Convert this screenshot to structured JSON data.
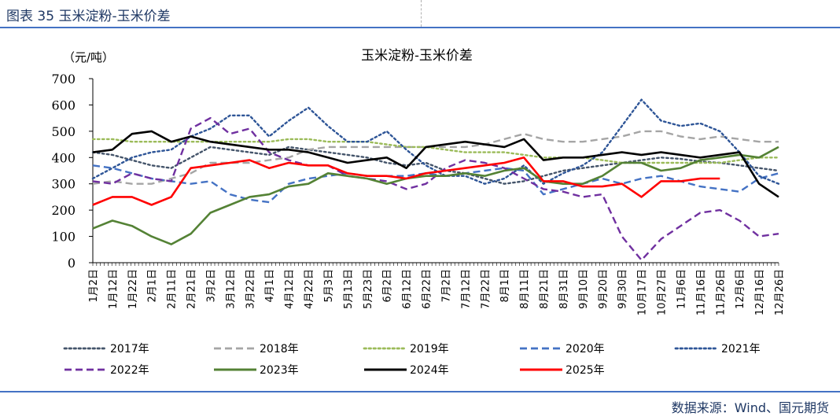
{
  "header": {
    "figure_title": "图表 35  玉米淀粉-玉米价差"
  },
  "footer": {
    "source": "数据来源：Wind、国元期货"
  },
  "chart_data": {
    "type": "line",
    "title": "玉米淀粉-玉米价差",
    "ylabel": "（元/吨）",
    "ylim": [
      0,
      700
    ],
    "yticks": [
      0,
      100,
      200,
      300,
      400,
      500,
      600,
      700
    ],
    "categories": [
      "1月2日",
      "1月12日",
      "1月22日",
      "2月1日",
      "2月11日",
      "2月21日",
      "3月2日",
      "3月12日",
      "3月22日",
      "4月1日",
      "4月12日",
      "4月22日",
      "5月3日",
      "5月13日",
      "5月23日",
      "6月2日",
      "6月12日",
      "6月22日",
      "7月2日",
      "7月12日",
      "7月22日",
      "8月1日",
      "8月11日",
      "8月21日",
      "8月31日",
      "9月10日",
      "9月20日",
      "9月30日",
      "10月17日",
      "10月27日",
      "11月6日",
      "11月16日",
      "11月26日",
      "12月6日",
      "12月16日",
      "12月26日"
    ],
    "legend_position": "bottom",
    "series": [
      {
        "name": "2017年",
        "color": "#44546a",
        "dash": "dot",
        "values": [
          420,
          410,
          390,
          370,
          360,
          400,
          440,
          430,
          420,
          410,
          440,
          430,
          420,
          410,
          400,
          380,
          370,
          380,
          350,
          340,
          320,
          300,
          310,
          330,
          350,
          360,
          370,
          380,
          390,
          400,
          395,
          385,
          380,
          370,
          360,
          350
        ]
      },
      {
        "name": "2018年",
        "color": "#a5a5a5",
        "dash": "dash",
        "values": [
          300,
          310,
          300,
          300,
          320,
          340,
          380,
          380,
          380,
          390,
          400,
          430,
          440,
          440,
          440,
          440,
          440,
          440,
          440,
          440,
          450,
          470,
          490,
          470,
          460,
          460,
          470,
          480,
          500,
          500,
          480,
          470,
          480,
          470,
          460,
          460
        ]
      },
      {
        "name": "2019年",
        "color": "#9bbb59",
        "dash": "dot",
        "values": [
          470,
          470,
          460,
          460,
          460,
          460,
          460,
          460,
          460,
          460,
          470,
          470,
          460,
          460,
          460,
          450,
          440,
          440,
          430,
          420,
          420,
          420,
          410,
          400,
          400,
          400,
          390,
          380,
          380,
          380,
          380,
          380,
          380,
          390,
          400,
          400
        ]
      },
      {
        "name": "2020年",
        "color": "#4472c4",
        "dash": "dash",
        "values": [
          370,
          360,
          340,
          320,
          310,
          300,
          310,
          260,
          240,
          230,
          300,
          320,
          330,
          340,
          330,
          330,
          330,
          340,
          330,
          340,
          350,
          360,
          350,
          260,
          280,
          300,
          320,
          300,
          320,
          330,
          310,
          290,
          280,
          270,
          320,
          340
        ]
      },
      {
        "name": "2021年",
        "color": "#2e5597",
        "dash": "dot",
        "values": [
          320,
          360,
          400,
          420,
          430,
          480,
          510,
          560,
          560,
          480,
          540,
          590,
          520,
          460,
          460,
          500,
          430,
          370,
          330,
          330,
          300,
          320,
          370,
          300,
          340,
          370,
          420,
          520,
          620,
          540,
          520,
          530,
          500,
          420,
          330,
          300
        ]
      },
      {
        "name": "2022年",
        "color": "#7030a0",
        "dash": "dash",
        "values": [
          310,
          300,
          340,
          320,
          310,
          510,
          550,
          490,
          510,
          420,
          390,
          370,
          370,
          330,
          320,
          310,
          280,
          300,
          360,
          390,
          380,
          360,
          320,
          280,
          270,
          250,
          260,
          100,
          10,
          90,
          140,
          190,
          200,
          160,
          100,
          110
        ]
      },
      {
        "name": "2023年",
        "color": "#548235",
        "dash": "solid",
        "values": [
          130,
          160,
          140,
          100,
          70,
          110,
          190,
          220,
          250,
          260,
          290,
          300,
          340,
          330,
          320,
          300,
          320,
          330,
          330,
          340,
          330,
          350,
          360,
          310,
          300,
          300,
          330,
          380,
          380,
          350,
          360,
          390,
          400,
          410,
          400,
          440
        ]
      },
      {
        "name": "2024年",
        "color": "#000000",
        "dash": "solid",
        "values": [
          420,
          430,
          490,
          500,
          460,
          480,
          460,
          450,
          440,
          430,
          430,
          420,
          400,
          380,
          390,
          400,
          360,
          440,
          450,
          460,
          450,
          440,
          470,
          390,
          400,
          400,
          410,
          420,
          410,
          420,
          410,
          400,
          410,
          420,
          300,
          250
        ]
      },
      {
        "name": "2025年",
        "color": "#ff0000",
        "dash": "solid",
        "values": [
          220,
          250,
          250,
          220,
          250,
          360,
          370,
          380,
          390,
          360,
          380,
          370,
          370,
          340,
          330,
          330,
          320,
          340,
          350,
          360,
          370,
          380,
          400,
          310,
          310,
          290,
          290,
          300,
          250,
          310,
          310,
          320,
          320,
          null,
          null,
          null
        ]
      }
    ]
  }
}
